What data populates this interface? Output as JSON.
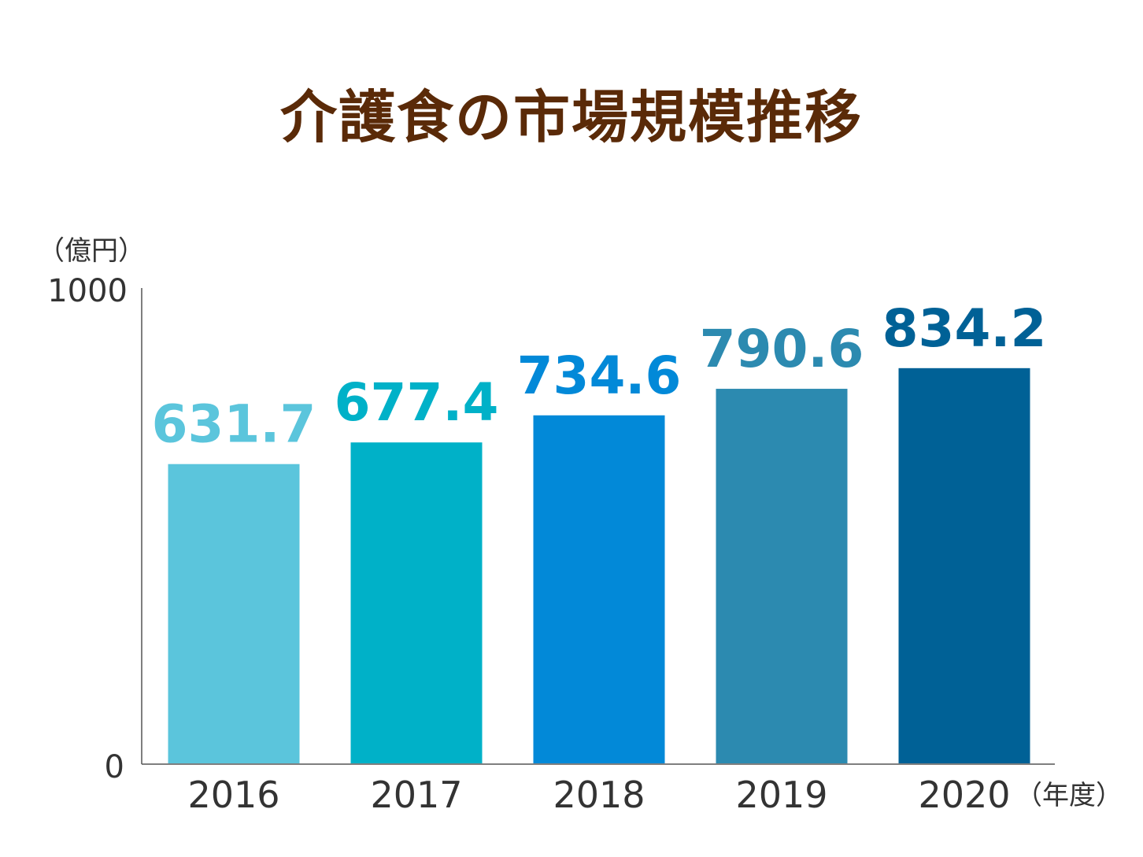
{
  "chart_data": {
    "type": "bar",
    "title": "介護食の市場規模推移",
    "ylabel": "（億円）",
    "xlabel": "（年度）",
    "categories": [
      "2016",
      "2017",
      "2018",
      "2019",
      "2020"
    ],
    "values": [
      631.7,
      677.4,
      734.6,
      790.6,
      834.2
    ],
    "value_labels": [
      "631.7",
      "677.4",
      "734.6",
      "790.6",
      "834.2"
    ],
    "colors": [
      "#5bc5dc",
      "#00b1c8",
      "#0289d8",
      "#2c8ab0",
      "#006196"
    ],
    "ylim": [
      0,
      1000
    ],
    "yticks": [
      "0",
      "1000"
    ],
    "grid": false,
    "legend": "none"
  }
}
